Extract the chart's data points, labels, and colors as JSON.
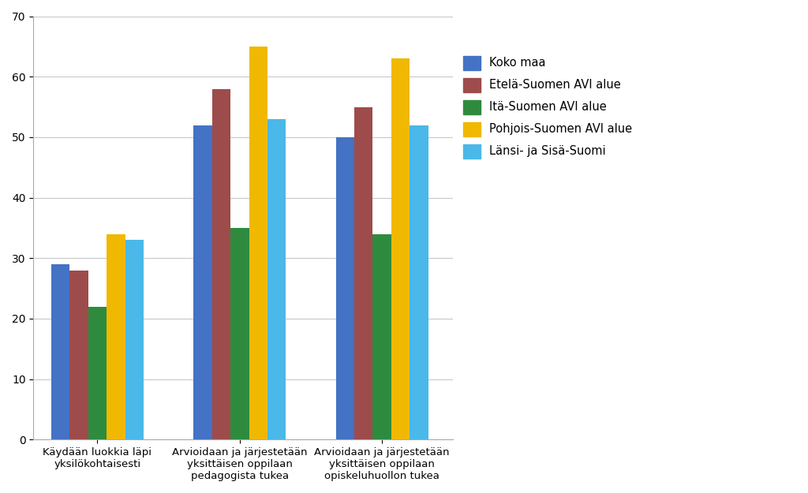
{
  "categories": [
    "Käydään luokkia läpi\nyksilökohtaisesti",
    "Arvioidaan ja järjestetään\nyksittäisen oppilaan\npedagogista tukea",
    "Arvioidaan ja järjestetään\nyksittäisen oppilaan\nopiskeluhuollon tukea"
  ],
  "series": [
    {
      "label": "Koko maa",
      "color": "#4472c4",
      "values": [
        29,
        52,
        50
      ]
    },
    {
      "label": "Etelä-Suomen AVI alue",
      "color": "#9e4b4b",
      "values": [
        28,
        58,
        55
      ]
    },
    {
      "label": "Itä-Suomen AVI alue",
      "color": "#2e8b3e",
      "values": [
        22,
        35,
        34
      ]
    },
    {
      "label": "Pohjois-Suomen AVI alue",
      "color": "#f0b800",
      "values": [
        34,
        65,
        63
      ]
    },
    {
      "label": "Länsi- ja Sisä-Suomi",
      "color": "#4ab8e8",
      "values": [
        33,
        53,
        52
      ]
    }
  ],
  "ylim": [
    0,
    70
  ],
  "yticks": [
    0,
    10,
    20,
    30,
    40,
    50,
    60,
    70
  ],
  "bar_width": 0.13,
  "group_positions": [
    0.35,
    1.35,
    2.35
  ],
  "background_color": "#ffffff",
  "plot_bg_color": "#ffffff",
  "grid_color": "#c8c8c8",
  "legend_fontsize": 10.5,
  "tick_fontsize": 10,
  "xtick_fontsize": 9.5
}
